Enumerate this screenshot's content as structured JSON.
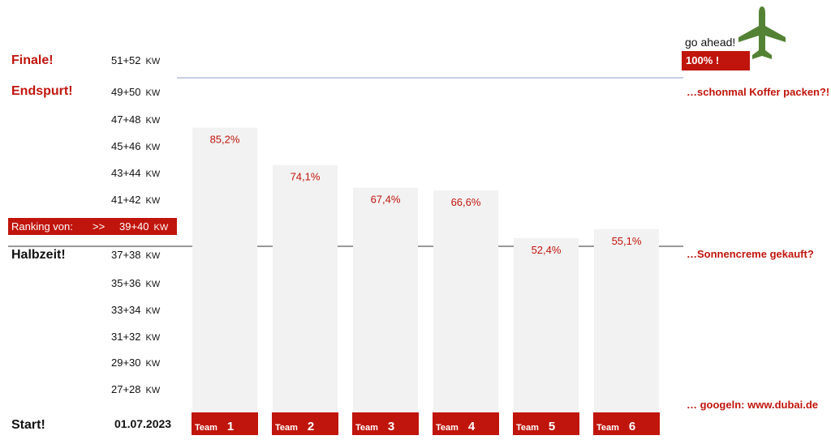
{
  "milestones": {
    "finale": "Finale!",
    "endspurt": "Endspurt!",
    "halbzeit": "Halbzeit!",
    "start": "Start!"
  },
  "start_date": "01.07.2023",
  "week_unit": "KW",
  "weeks": {
    "w51": "51+52",
    "w49": "49+50",
    "w47": "47+48",
    "w45": "45+46",
    "w43": "43+44",
    "w41": "41+42",
    "w39": "39+40",
    "w37": "37+38",
    "w35": "35+36",
    "w33": "33+34",
    "w31": "31+32",
    "w29": "29+30",
    "w27": "27+28"
  },
  "ranking": {
    "label": "Ranking von:",
    "arrow": ">>"
  },
  "annotations": {
    "go_ahead": "go ahead!",
    "hundred": "100% !",
    "koffer": "…schonmal Koffer packen?!",
    "sonnencreme": "…Sonnencreme gekauft?",
    "googeln": "… googeln:  www.dubai.de"
  },
  "colors": {
    "accent": "#c0150c",
    "bar": "#f2f2f2",
    "plane": "#548235",
    "line_top": "#8e9bc7",
    "line_mid": "#333333"
  },
  "icons": {
    "plane": "airplane-icon"
  },
  "chart_data": {
    "type": "bar",
    "categories": [
      "1",
      "2",
      "3",
      "4",
      "5",
      "6"
    ],
    "category_prefix": "Team",
    "values": [
      85.2,
      74.1,
      67.4,
      66.6,
      52.4,
      55.1
    ],
    "data_labels": [
      "85,2%",
      "74,1%",
      "67,4%",
      "66,6%",
      "52,4%",
      "55,1%"
    ],
    "ylim": [
      0,
      100
    ],
    "reference_lines": [
      50,
      100
    ],
    "grid": false,
    "legend": "none"
  }
}
